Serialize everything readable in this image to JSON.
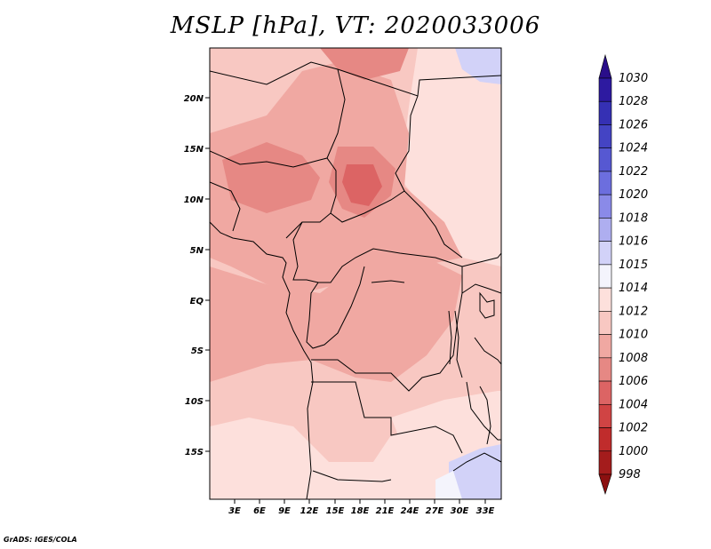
{
  "title": "MSLP [hPa], VT: 2020033006",
  "footer": "GrADS: IGES/COLA",
  "map": {
    "variable": "MSLP",
    "units": "hPa",
    "valid_time": "2020033006",
    "lat_ticks": [
      "20N",
      "15N",
      "10N",
      "5N",
      "EQ",
      "5S",
      "10S",
      "15S"
    ],
    "lon_ticks": [
      "3E",
      "6E",
      "9E",
      "12E",
      "15E",
      "18E",
      "21E",
      "24E",
      "27E",
      "30E",
      "33E"
    ],
    "lat_values": [
      20,
      15,
      10,
      5,
      0,
      -5,
      -10,
      -15
    ],
    "lon_values": [
      3,
      6,
      9,
      12,
      15,
      18,
      21,
      24,
      27,
      30,
      33
    ]
  },
  "colorbar": {
    "levels": [
      "1030",
      "1028",
      "1026",
      "1024",
      "1022",
      "1020",
      "1018",
      "1016",
      "1015",
      "1014",
      "1012",
      "1010",
      "1008",
      "1006",
      "1004",
      "1002",
      "1000",
      "998"
    ],
    "colors": [
      "#2a0e8a",
      "#2d1aa0",
      "#3530b4",
      "#4444c4",
      "#5658d2",
      "#6c6ede",
      "#8a8ae8",
      "#aeaef0",
      "#d2d2f8",
      "#f4f4fc",
      "#fde0dc",
      "#f8c8c2",
      "#f0a8a2",
      "#e68884",
      "#dc6464",
      "#d04444",
      "#c02c2c",
      "#a41c1c",
      "#8c1010"
    ]
  }
}
